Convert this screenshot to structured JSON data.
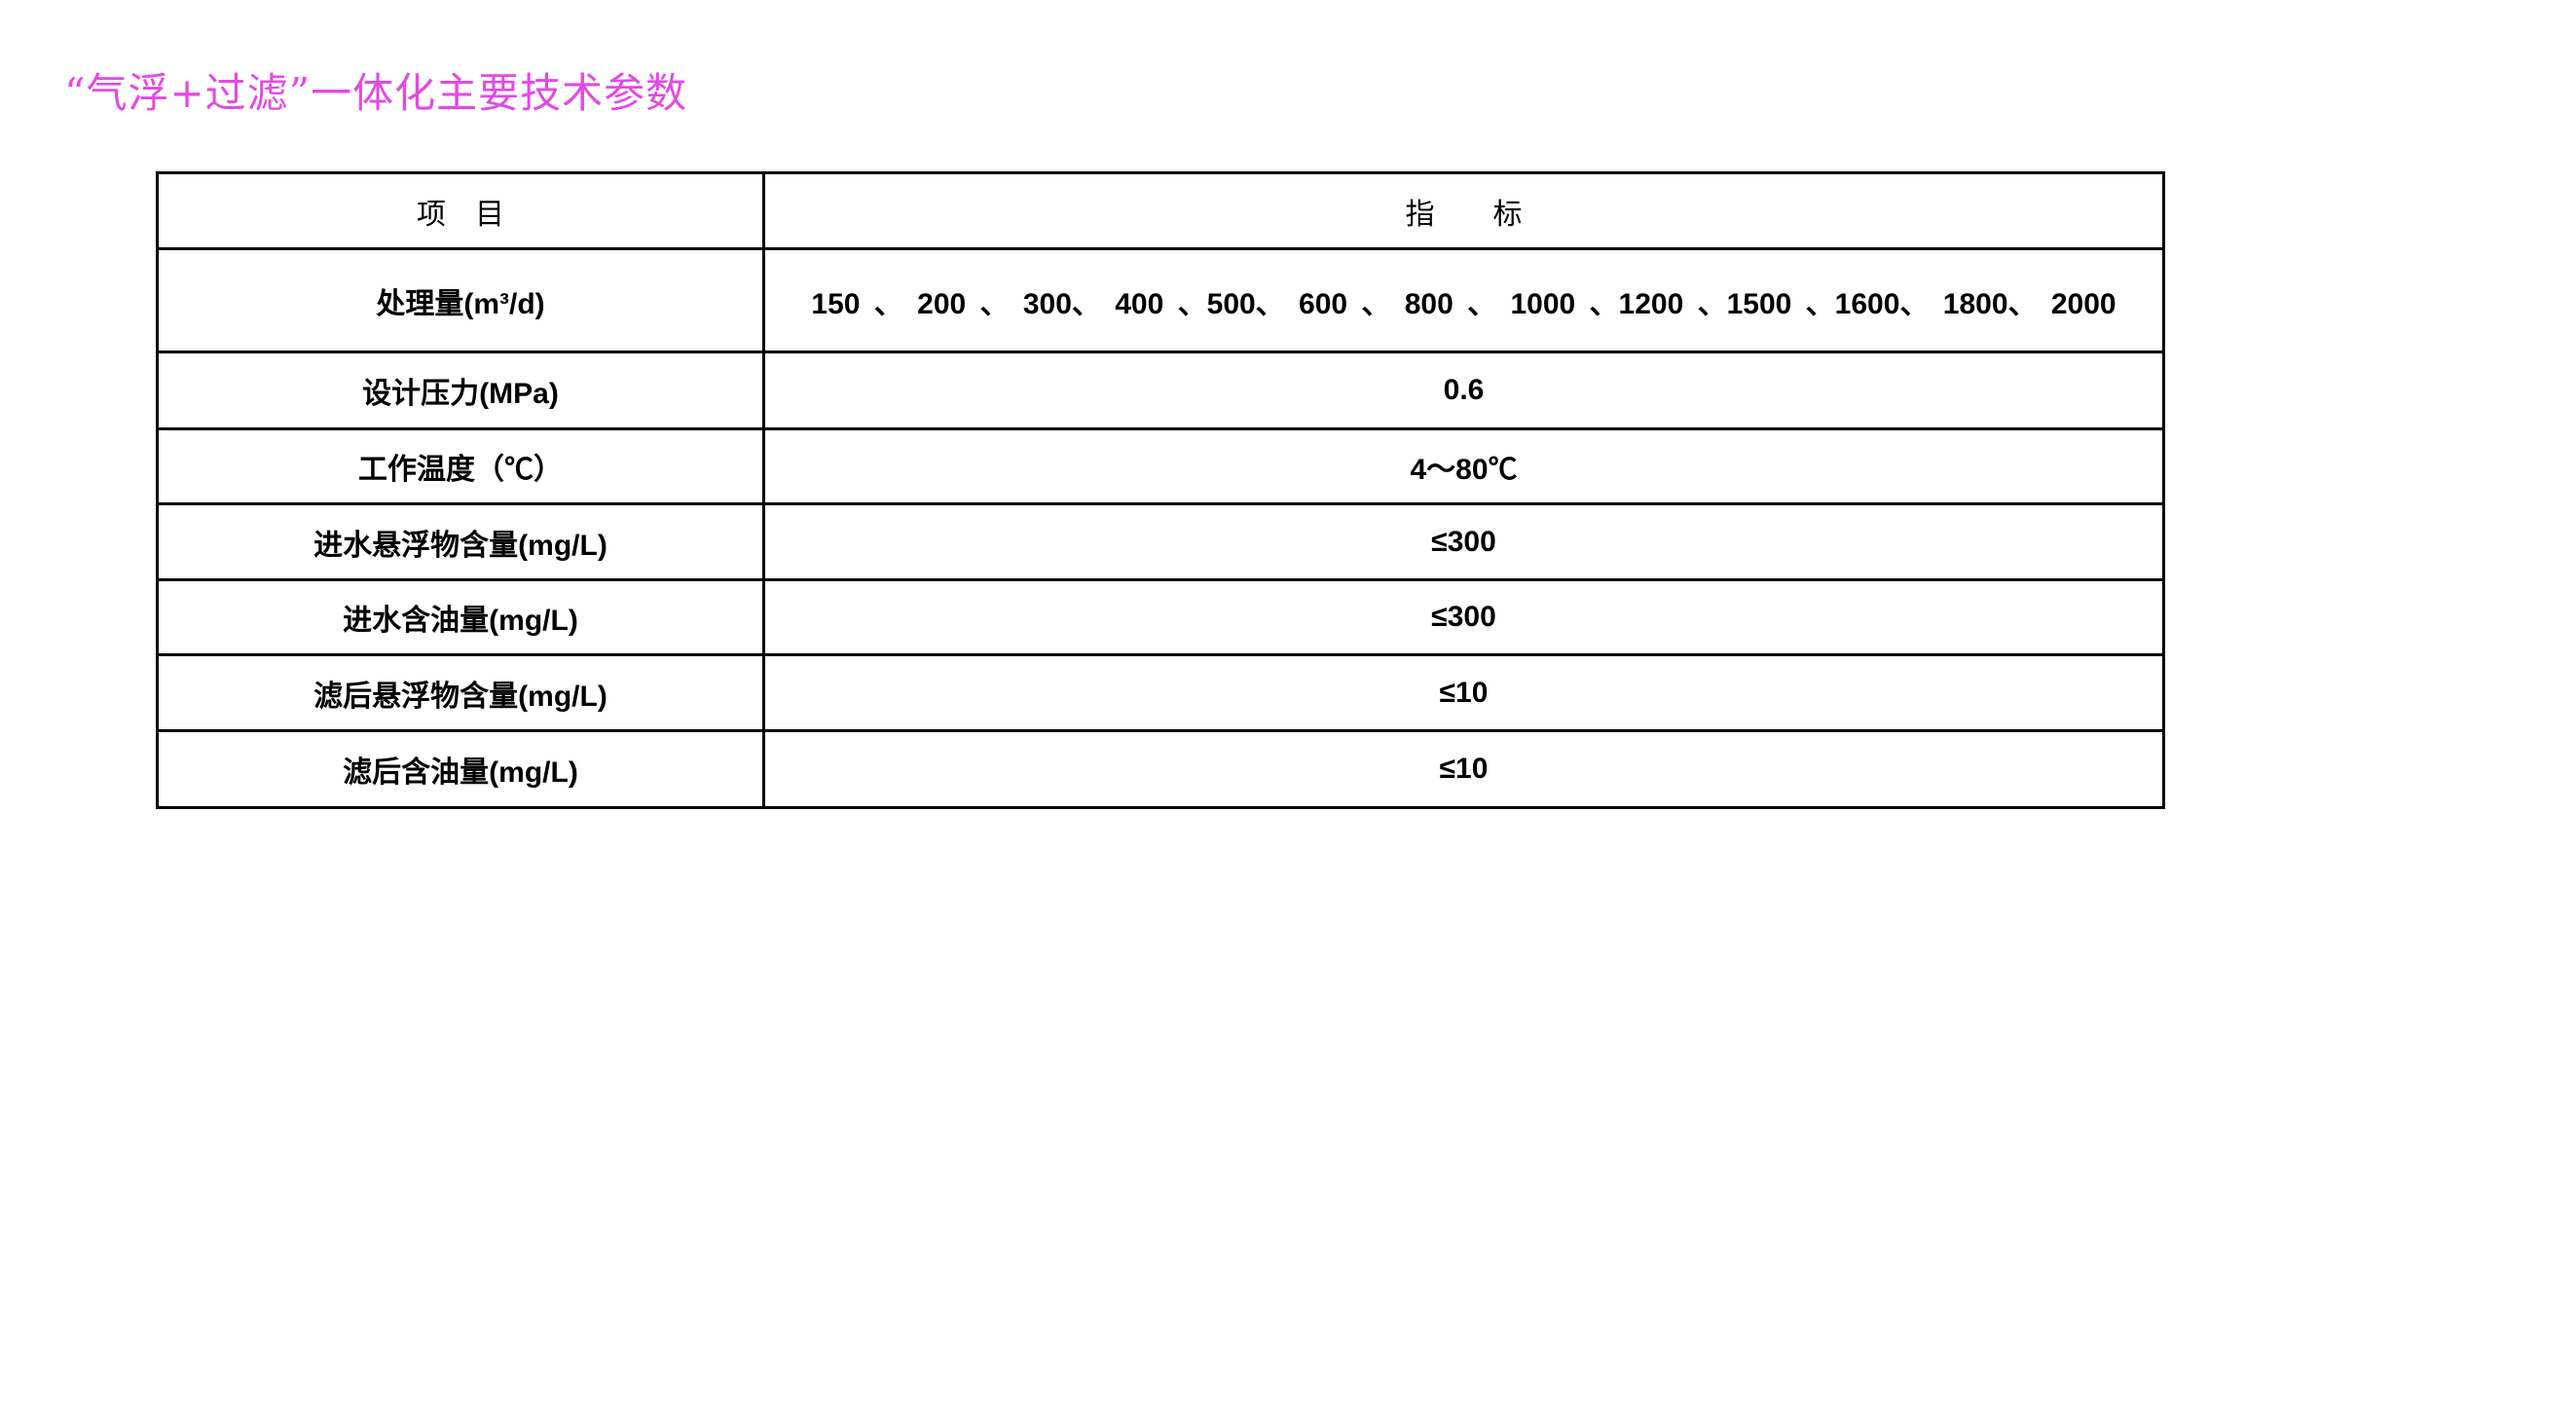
{
  "title": "“气浮+过滤”一体化主要技术参数",
  "table": {
    "headers": [
      "项　目",
      "指　　标"
    ],
    "rows": [
      {
        "item": "处理量(m³/d)",
        "value": "150 、 200 、 300、 400 、500、 600 、 800 、 1000 、1200 、1500 、1600、 1800、 2000"
      },
      {
        "item": "设计压力(MPa)",
        "value": "0.6"
      },
      {
        "item": "工作温度（℃）",
        "value": "4～80℃"
      },
      {
        "item": "进水悬浮物含量(mg/L)",
        "value": "≤300"
      },
      {
        "item": "进水含油量(mg/L)",
        "value": "≤300"
      },
      {
        "item": "滤后悬浮物含量(mg/L)",
        "value": "≤10"
      },
      {
        "item": "滤后含油量(mg/L)",
        "value": "≤10"
      }
    ]
  },
  "colors": {
    "title": "#e34ae3"
  }
}
